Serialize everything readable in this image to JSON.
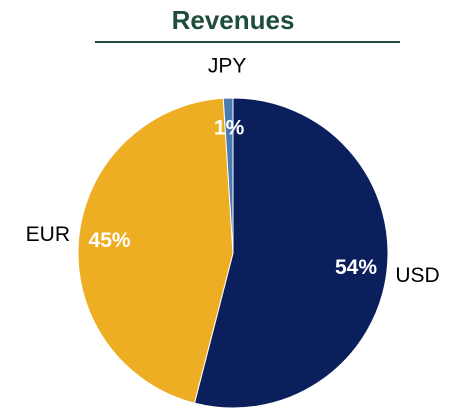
{
  "chart_data": {
    "type": "pie",
    "title": "Revenues",
    "categories": [
      "USD",
      "EUR",
      "JPY"
    ],
    "values": [
      54,
      45,
      1
    ],
    "value_labels": [
      "54%",
      "45%",
      "1%"
    ],
    "colors": [
      "#0b1f5c",
      "#eeae24",
      "#4a7bb0"
    ]
  }
}
